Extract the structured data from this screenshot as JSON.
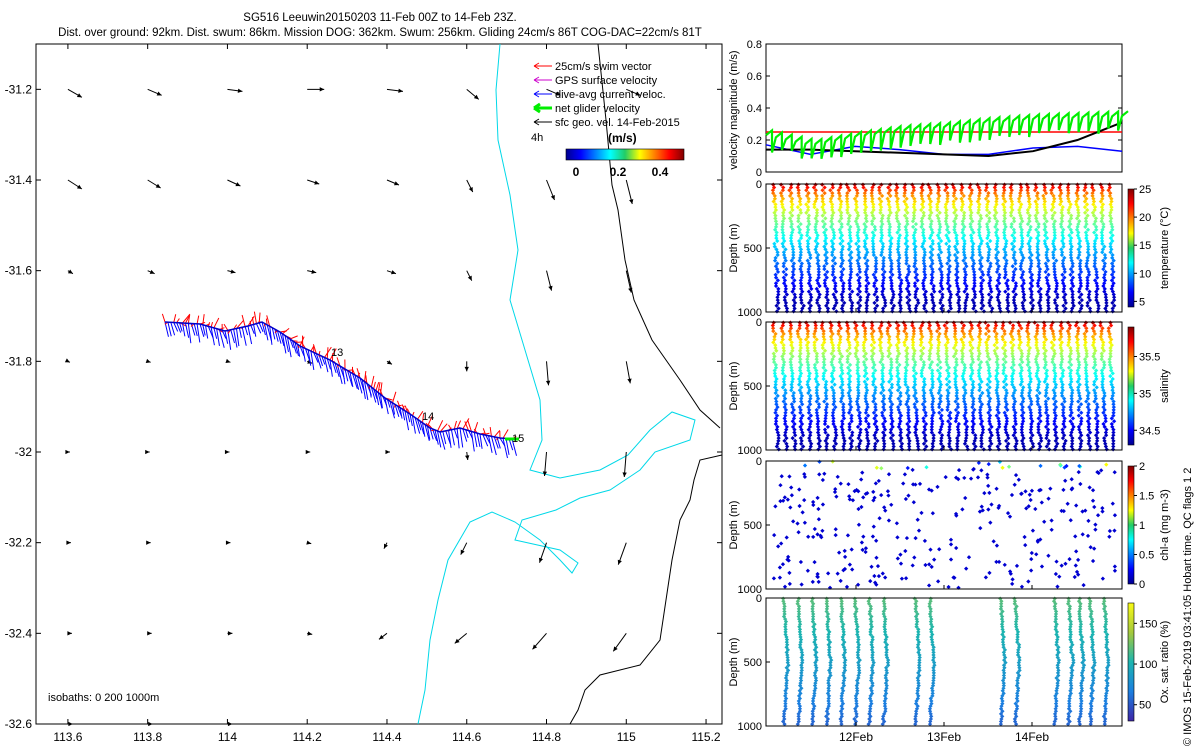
{
  "title_line1": "SG516 Leeuwin20150203 11-Feb 00Z to 14-Feb 23Z.",
  "title_line2": "Dist. over ground: 92km. Dist. swum: 86km. Mission DOG: 362km. Swum: 256km. Gliding 24cm/s 86T COG-DAC=22cm/s 81T",
  "copyright": "© IMOS 15-Feb-2019 03:41:05 Hobart time. QC flags 1  2",
  "isobaths_label": "isobaths: 0   200  1000m",
  "legend": {
    "items": [
      {
        "label": "25cm/s swim vector",
        "color": "#ff0000"
      },
      {
        "label": "GPS surface velocity",
        "color": "#cc00cc"
      },
      {
        "label": "dive-avg current veloc.",
        "color": "#0000ff"
      },
      {
        "label": "net glider velocity",
        "color": "#00ee00"
      },
      {
        "label": "sfc geo. vel. 14-Feb-2015",
        "color": "#000000"
      }
    ],
    "time_label": "4h",
    "colorbar_title": "(m/s)",
    "colorbar_ticks": [
      "0",
      "0.2",
      "0.4"
    ]
  },
  "map": {
    "x_ticks": [
      "113.6",
      "113.8",
      "114",
      "114.2",
      "114.4",
      "114.6",
      "114.8",
      "115",
      "115.2"
    ],
    "y_ticks": [
      "-31.2",
      "-31.4",
      "-31.6",
      "-31.8",
      "-32",
      "-32.2",
      "-32.4",
      "-32.6"
    ],
    "track_day_labels": [
      "13",
      "14",
      "15"
    ],
    "xlim": [
      113.52,
      115.24
    ],
    "ylim": [
      -32.6,
      -31.1
    ]
  },
  "chart_data": [
    {
      "type": "line",
      "title": "",
      "ylabel": "velocity magnitude (m/s)",
      "ylim": [
        0,
        0.8
      ],
      "y_ticks": [
        "0",
        "0.2",
        "0.4",
        "0.6",
        "0.8"
      ],
      "x": [
        11.0,
        11.5,
        12.0,
        12.5,
        13.0,
        13.5,
        14.0,
        14.5,
        15.0
      ],
      "series": [
        {
          "name": "25cm/s swim vector",
          "color": "#ff0000",
          "values": [
            0.25,
            0.25,
            0.25,
            0.25,
            0.25,
            0.25,
            0.25,
            0.25,
            0.25
          ]
        },
        {
          "name": "dive-avg current veloc.",
          "color": "#0000ff",
          "values": [
            0.17,
            0.11,
            0.16,
            0.14,
            0.11,
            0.11,
            0.15,
            0.16,
            0.13
          ]
        },
        {
          "name": "sfc geo. vel.",
          "color": "#000000",
          "values": [
            0.14,
            0.14,
            0.13,
            0.12,
            0.11,
            0.1,
            0.13,
            0.2,
            0.31
          ]
        },
        {
          "name": "net glider velocity",
          "color": "#00ee00",
          "values": [
            0.23,
            0.17,
            0.22,
            0.26,
            0.28,
            0.31,
            0.33,
            0.34,
            0.35
          ]
        }
      ]
    },
    {
      "type": "scatter",
      "ylabel": "Depth (m)",
      "ylim": [
        1000,
        0
      ],
      "y_ticks": [
        "0",
        "500",
        "1000"
      ],
      "colorbar_label": "temperature (°C)",
      "colorbar_ticks": [
        "5",
        "10",
        "15",
        "20",
        "25"
      ],
      "color_range": [
        4,
        25
      ]
    },
    {
      "type": "scatter",
      "ylabel": "Depth (m)",
      "ylim": [
        1000,
        0
      ],
      "y_ticks": [
        "0",
        "500",
        "1000"
      ],
      "colorbar_label": "salinity",
      "colorbar_ticks": [
        "34.5",
        "35",
        "35.5"
      ],
      "color_range": [
        34.3,
        35.9
      ]
    },
    {
      "type": "scatter",
      "ylabel": "Depth (m)",
      "ylim": [
        1000,
        0
      ],
      "y_ticks": [
        "0",
        "500",
        "1000"
      ],
      "colorbar_label": "chl-a (mg m-3)",
      "colorbar_ticks": [
        "0",
        "0.5",
        "1",
        "1.5",
        "2"
      ],
      "color_range": [
        0,
        2
      ]
    },
    {
      "type": "scatter",
      "ylabel": "Depth (m)",
      "ylim": [
        1000,
        0
      ],
      "y_ticks": [
        "0",
        "500",
        "1000"
      ],
      "colorbar_label": "Ox. sat. ratio (%)",
      "colorbar_ticks": [
        "50",
        "100",
        "150"
      ],
      "color_range": [
        30,
        175
      ],
      "x_ticks": [
        "12Feb",
        "13Feb",
        "14Feb"
      ]
    }
  ]
}
